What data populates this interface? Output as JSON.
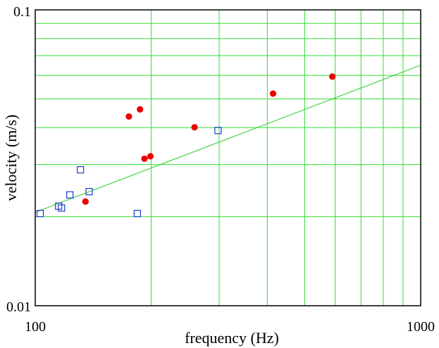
{
  "chart_data": {
    "type": "scatter",
    "xlabel": "frequency (Hz)",
    "ylabel": "velocity (m/s)",
    "xscale": "log",
    "yscale": "log",
    "xlim": [
      100,
      1000
    ],
    "ylim": [
      0.01,
      0.1
    ],
    "x_tick_labels": [
      "100",
      "1000"
    ],
    "y_tick_labels": [
      "0.1",
      "0.01"
    ],
    "grid": true,
    "grid_color": "#33dd33",
    "series": [
      {
        "marker": "filled-circle",
        "color": "#ee0000",
        "points": [
          [
            135,
            0.0225
          ],
          [
            175,
            0.0436
          ],
          [
            187,
            0.0461
          ],
          [
            192,
            0.0314
          ],
          [
            199,
            0.032
          ],
          [
            259,
            0.0401
          ],
          [
            414,
            0.0521
          ],
          [
            590,
            0.0595
          ]
        ]
      },
      {
        "marker": "open-square",
        "color": "#1a3ccc",
        "points": [
          [
            103,
            0.0205
          ],
          [
            115,
            0.0217
          ],
          [
            117,
            0.0214
          ],
          [
            123,
            0.0237
          ],
          [
            131,
            0.0288
          ],
          [
            138,
            0.0243
          ],
          [
            184,
            0.0205
          ],
          [
            298,
            0.0391
          ]
        ]
      }
    ],
    "fit_line": {
      "color": "#22cc22",
      "points": [
        [
          100,
          0.0207
        ],
        [
          1000,
          0.065
        ]
      ]
    }
  }
}
